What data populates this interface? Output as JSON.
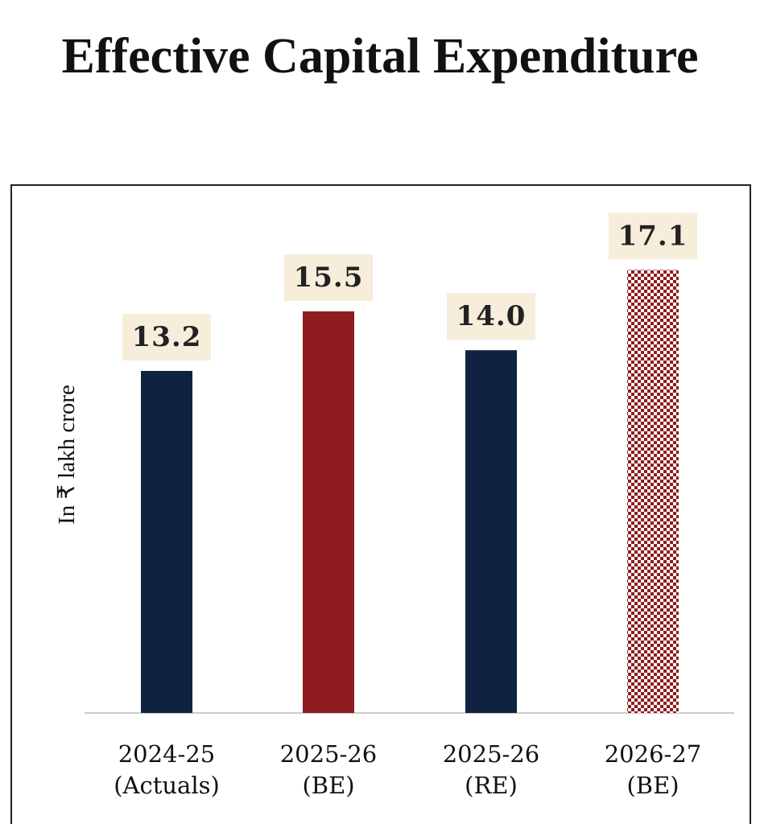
{
  "chart_data": {
    "type": "bar",
    "title": "Effective Capital Expenditure",
    "y_label": "In ₹ lakh crore",
    "categories": [
      "2024-25\n(Actuals)",
      "2025-26\n(BE)",
      "2025-26\n(RE)",
      "2026-27\n(BE)"
    ],
    "values": [
      13.2,
      15.5,
      14.0,
      17.1
    ],
    "value_labels": [
      "13.2",
      "15.5",
      "14.0",
      "17.1"
    ],
    "colors": [
      "#0f2340",
      "#8e1c1f",
      "#0f2340",
      "#8e1c1f"
    ],
    "fills": [
      "solid",
      "solid",
      "solid",
      "checker"
    ]
  }
}
